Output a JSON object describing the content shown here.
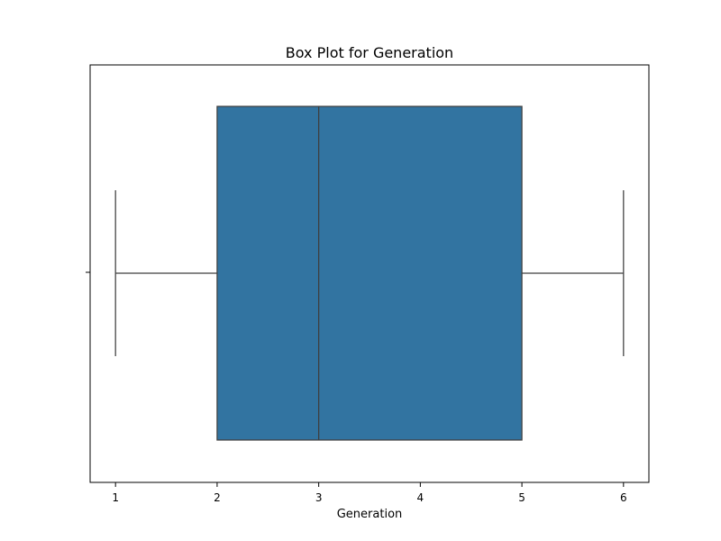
{
  "chart_data": {
    "type": "box",
    "title": "Box Plot for Generation",
    "xlabel": "Generation",
    "ylabel": "",
    "xlim": [
      0.75,
      6.25
    ],
    "x_ticks": [
      1,
      2,
      3,
      4,
      5,
      6
    ],
    "x_tick_labels": [
      "1",
      "2",
      "3",
      "4",
      "5",
      "6"
    ],
    "orientation": "horizontal",
    "grid": false,
    "legend": "none",
    "series": [
      {
        "whisker_low": 1,
        "q1": 2,
        "median": 3,
        "q3": 5,
        "whisker_high": 6,
        "color": "#3274a1",
        "edge_color": "#3f3f3f"
      }
    ]
  }
}
